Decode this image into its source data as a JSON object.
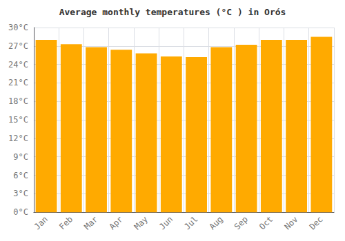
{
  "chart_data": {
    "type": "bar",
    "title": "Average monthly temperatures (°C ) in Orós",
    "categories": [
      "Jan",
      "Feb",
      "Mar",
      "Apr",
      "May",
      "Jun",
      "Jul",
      "Aug",
      "Sep",
      "Oct",
      "Nov",
      "Dec"
    ],
    "values": [
      28.0,
      27.3,
      26.8,
      26.4,
      25.8,
      25.3,
      25.2,
      26.8,
      27.2,
      28.0,
      28.0,
      28.5
    ],
    "color": "#FFAA00",
    "ylim": [
      0,
      30
    ],
    "yticks": [
      {
        "value": 0,
        "label": "0°C"
      },
      {
        "value": 3,
        "label": "3°C"
      },
      {
        "value": 6,
        "label": "6°C"
      },
      {
        "value": 9,
        "label": "9°C"
      },
      {
        "value": 12,
        "label": "12°C"
      },
      {
        "value": 15,
        "label": "15°C"
      },
      {
        "value": 18,
        "label": "18°C"
      },
      {
        "value": 21,
        "label": "21°C"
      },
      {
        "value": 24,
        "label": "24°C"
      },
      {
        "value": 27,
        "label": "27°C"
      },
      {
        "value": 30,
        "label": "30°C"
      }
    ],
    "grid": true
  }
}
